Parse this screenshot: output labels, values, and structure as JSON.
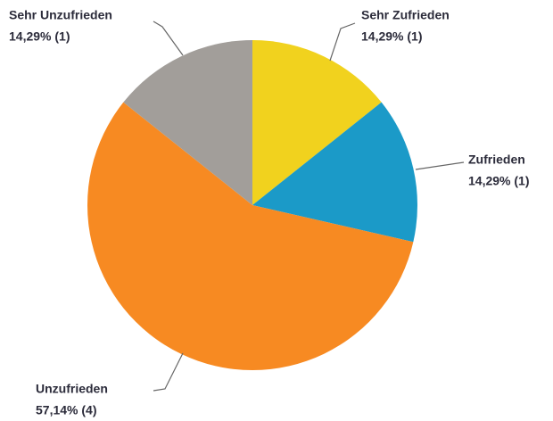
{
  "chart_data": {
    "type": "pie",
    "categories": [
      "Sehr Zufrieden",
      "Zufrieden",
      "Unzufrieden",
      "Sehr Unzufrieden"
    ],
    "values": [
      14.29,
      14.29,
      57.14,
      14.29
    ],
    "value_labels": [
      "14,29% (1)",
      "14,29% (1)",
      "57,14% (4)",
      "14,29% (1)"
    ],
    "colors": [
      "#f1d21e",
      "#1b9ac8",
      "#f78a22",
      "#a29e9a"
    ]
  }
}
